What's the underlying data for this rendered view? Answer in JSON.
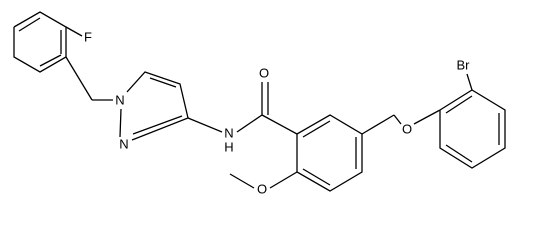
{
  "atoms": {
    "fluorine": "F",
    "pyrazole_n1": "N",
    "pyrazole_n2": "N",
    "amide_n": "N",
    "amide_h": "H",
    "carbonyl_o": "O",
    "ether_o": "O",
    "bromine": "Br",
    "methoxy_o": "O"
  }
}
